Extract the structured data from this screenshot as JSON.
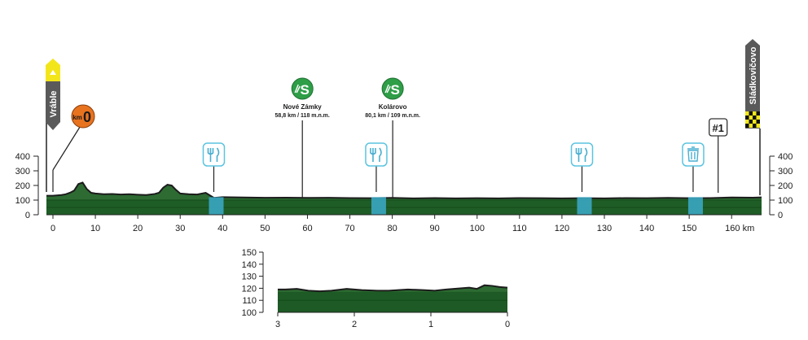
{
  "chart_data": [
    {
      "type": "area",
      "x_unit": "km",
      "x_ticks": [
        0,
        10,
        20,
        30,
        40,
        50,
        60,
        70,
        80,
        90,
        100,
        110,
        120,
        130,
        140,
        150,
        160
      ],
      "x_tick_labels": [
        "0",
        "10",
        "20",
        "30",
        "40",
        "50",
        "60",
        "70",
        "80",
        "90",
        "100",
        "110",
        "120",
        "130",
        "140",
        "150",
        "160 km"
      ],
      "y_ticks": [
        0,
        100,
        200,
        300,
        400
      ],
      "y_tick_labels": [
        "0",
        "100",
        "200",
        "300",
        "400"
      ],
      "xlim": [
        0,
        168.6
      ],
      "ylim": [
        0,
        400
      ],
      "grid": false,
      "colors": {
        "fill": "#2d6b32",
        "band": "#1d5a25",
        "outline": "#1c1c1c"
      },
      "series": [
        {
          "x": [
            0,
            2,
            3,
            4,
            5,
            6,
            7,
            8,
            9,
            10,
            12,
            14,
            16,
            18,
            20,
            22,
            24,
            25,
            26,
            27,
            28,
            29,
            30,
            32,
            34,
            36,
            38,
            40,
            45,
            50,
            55,
            60,
            65,
            70,
            75,
            80,
            85,
            90,
            95,
            100,
            105,
            110,
            115,
            120,
            125,
            130,
            135,
            140,
            145,
            150,
            155,
            160,
            165,
            168.6
          ],
          "y": [
            130,
            135,
            140,
            150,
            165,
            210,
            220,
            175,
            150,
            145,
            140,
            142,
            138,
            140,
            137,
            135,
            142,
            150,
            185,
            205,
            200,
            170,
            145,
            140,
            138,
            150,
            115,
            120,
            118,
            116,
            117,
            115,
            116,
            114,
            113,
            115,
            112,
            114,
            112,
            113,
            112,
            114,
            113,
            112,
            113,
            112,
            114,
            113,
            115,
            113,
            114,
            118,
            117,
            119
          ]
        }
      ],
      "sprints": [
        {
          "km": 58.8,
          "name": "Nové Zámky",
          "detail": "58,8 km / 118 m.n.m."
        },
        {
          "km": 80.1,
          "name": "Kolárovo",
          "detail": "80,1 km / 109 m.n.m."
        }
      ],
      "feed_zones": [
        38.5,
        76.8,
        125.3
      ],
      "waste_zones": [
        151.5
      ],
      "start": {
        "name": "Vráble",
        "km": -1.5
      },
      "km0": {
        "label_prefix": "km",
        "label_value": "0",
        "km": 0
      },
      "finish": {
        "name": "Sládkovičovo",
        "km": 168.6
      },
      "markers": [
        {
          "label": "#1",
          "km": 157.4
        }
      ]
    },
    {
      "type": "area",
      "x_unit": "km",
      "x_reversed": true,
      "x_ticks": [
        3,
        2,
        1,
        0
      ],
      "x_tick_labels": [
        "3",
        "2",
        "1",
        "0"
      ],
      "y_ticks": [
        100,
        110,
        120,
        130,
        140,
        150
      ],
      "y_tick_labels": [
        "100",
        "110",
        "120",
        "130",
        "140",
        "150"
      ],
      "xlim": [
        3,
        0
      ],
      "ylim": [
        100,
        150
      ],
      "grid": false,
      "colors": {
        "fill": "#2d6b32",
        "band": "#1d5a25",
        "outline": "#1c1c1c"
      },
      "series": [
        {
          "x": [
            3,
            2.9,
            2.75,
            2.6,
            2.45,
            2.3,
            2.1,
            1.9,
            1.7,
            1.55,
            1.3,
            1.1,
            0.95,
            0.8,
            0.6,
            0.5,
            0.4,
            0.3,
            0.2,
            0.1,
            0
          ],
          "y": [
            119,
            119,
            119.5,
            118,
            117.5,
            118,
            119.5,
            118.5,
            118,
            118,
            119,
            118.5,
            118,
            119,
            120,
            120.5,
            119.5,
            122.5,
            122,
            121,
            120.5
          ]
        }
      ]
    }
  ],
  "icons": {
    "sprint": "sprint-icon",
    "feed": "feed-zone-icon",
    "waste": "waste-zone-icon",
    "start_flag": "start-flag",
    "finish_flag": "finish-flag",
    "km0": "km0-badge"
  }
}
